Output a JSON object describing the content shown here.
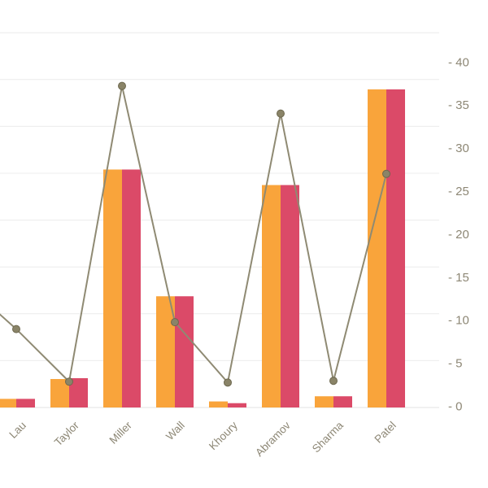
{
  "chart_data": {
    "type": "bar",
    "subtype": "grouped-bars-with-line-overlay",
    "title": "",
    "xlabel": "",
    "ylabel": "",
    "categories": [
      "Lau",
      "Taylor",
      "Miller",
      "Wall",
      "Khoury",
      "Abramov",
      "Sharma",
      "Patel"
    ],
    "series": [
      {
        "name": "orange-bar-series",
        "type": "bar",
        "color": "#F9A43B",
        "values": [
          1,
          3.3,
          27.6,
          12.9,
          0.7,
          25.8,
          1.3,
          36.9
        ]
      },
      {
        "name": "pink-bar-series",
        "type": "bar",
        "color": "#DB4A68",
        "values": [
          1,
          3.4,
          27.6,
          12.9,
          0.5,
          25.8,
          1.3,
          36.9
        ]
      },
      {
        "name": "line-series",
        "type": "line",
        "color": "#8F8A73",
        "marker_fill": "#8A8468",
        "marker_stroke": "#6D684F",
        "values": [
          9,
          2.9,
          37.2,
          9.8,
          2.8,
          34,
          3,
          27
        ],
        "offscreen_left_value": 14.5
      }
    ],
    "ylim": [
      0,
      40
    ],
    "y_ticks": [
      "0",
      "5",
      "10",
      "15",
      "20",
      "25",
      "30",
      "35",
      "40"
    ],
    "y_tick_prefix": "- ",
    "y_axis_side": "right",
    "grid": true,
    "legend": "none",
    "gridline_color": "#ECECEC",
    "baseline_color": "#E3E3E3",
    "axis_label_color": "#8D8775",
    "crop_note": "left edge of chart is cut: first orange bar partially clipped and line enters from off-screen left"
  }
}
